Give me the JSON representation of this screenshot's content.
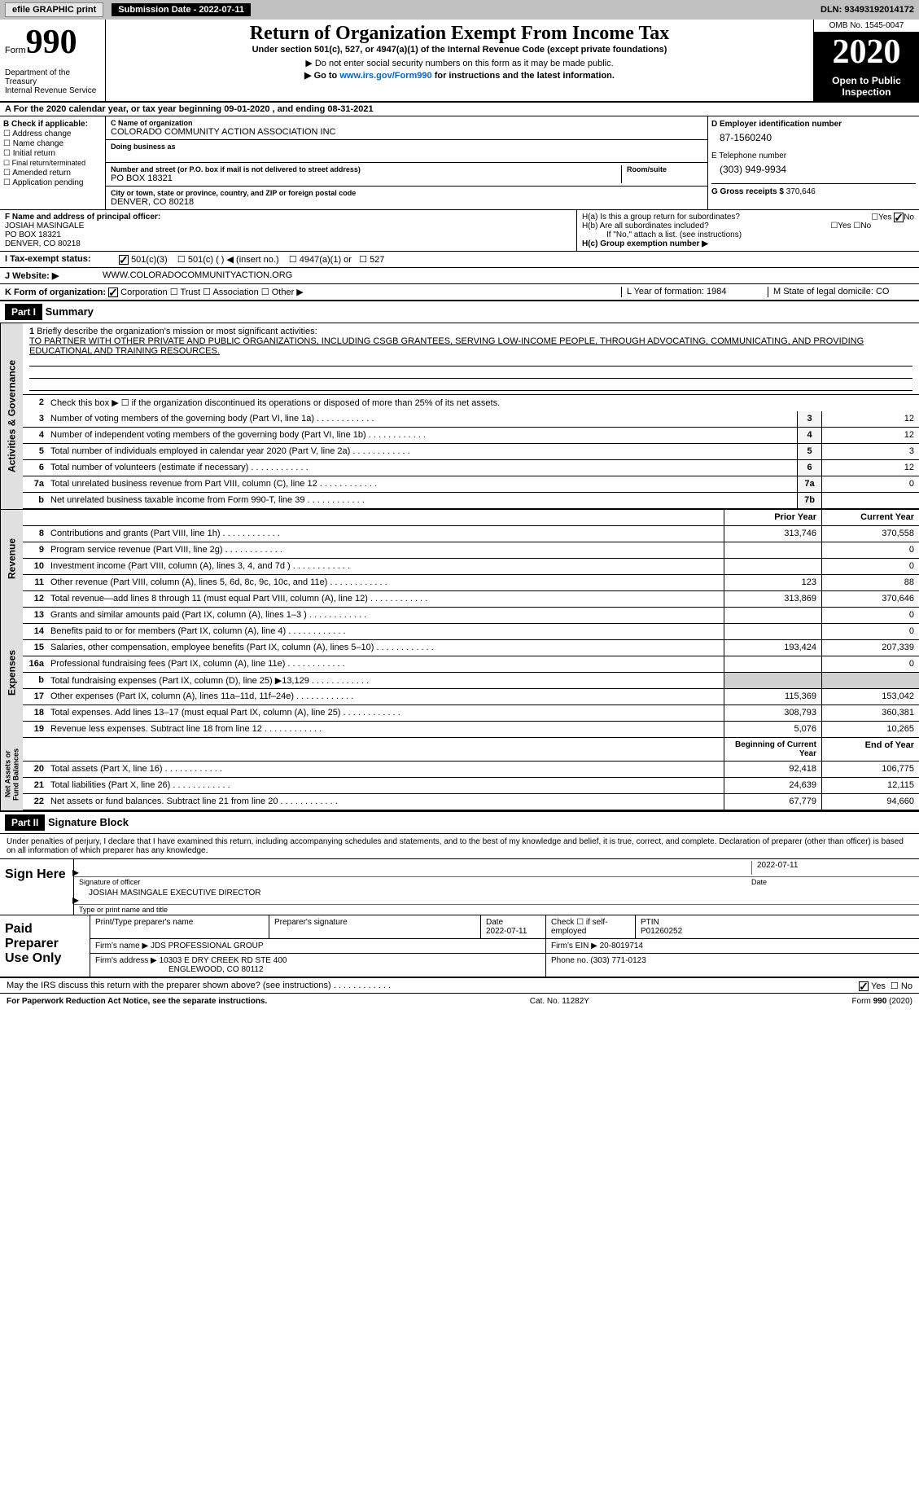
{
  "topbar": {
    "efile": "efile GRAPHIC print",
    "submission_label": "Submission Date - 2022-07-11",
    "dln": "DLN: 93493192014172"
  },
  "header": {
    "form_prefix": "Form",
    "form_num": "990",
    "dept": "Department of the Treasury\nInternal Revenue Service",
    "title": "Return of Organization Exempt From Income Tax",
    "subtitle": "Under section 501(c), 527, or 4947(a)(1) of the Internal Revenue Code (except private foundations)",
    "instruction1": "▶ Do not enter social security numbers on this form as it may be made public.",
    "instruction2": "▶ Go to www.irs.gov/Form990 for instructions and the latest information.",
    "link": "www.irs.gov/Form990",
    "omb": "OMB No. 1545-0047",
    "year": "2020",
    "open": "Open to Public Inspection"
  },
  "rowA": "A For the 2020 calendar year, or tax year beginning 09-01-2020   , and ending 08-31-2021",
  "checkB": {
    "title": "B Check if applicable:",
    "items": [
      "Address change",
      "Name change",
      "Initial return",
      "Final return/terminated",
      "Amended return",
      "Application pending"
    ]
  },
  "blockC": {
    "name_lbl": "C Name of organization",
    "name": "COLORADO COMMUNITY ACTION ASSOCIATION INC",
    "dba_lbl": "Doing business as",
    "dba": "",
    "addr_lbl": "Number and street (or P.O. box if mail is not delivered to street address)",
    "addr": "PO BOX 18321",
    "room_lbl": "Room/suite",
    "city_lbl": "City or town, state or province, country, and ZIP or foreign postal code",
    "city": "DENVER, CO  80218"
  },
  "blockDE": {
    "d_lbl": "D Employer identification number",
    "d_val": "87-1560240",
    "e_lbl": "E Telephone number",
    "e_val": "(303) 949-9934",
    "g_lbl": "G Gross receipts $",
    "g_val": "370,646"
  },
  "blockF": {
    "lbl": "F Name and address of principal officer:",
    "name": "JOSIAH MASINGALE",
    "addr": "PO BOX 18321",
    "city": "DENVER, CO  80218"
  },
  "blockH": {
    "ha": "H(a)  Is this a group return for subordinates?",
    "hb": "H(b)  Are all subordinates included?",
    "hnote": "If \"No,\" attach a list. (see instructions)",
    "hc": "H(c)  Group exemption number ▶"
  },
  "rowI": {
    "lbl": "I    Tax-exempt status:",
    "opts": [
      "501(c)(3)",
      "501(c) (  ) ◀ (insert no.)",
      "4947(a)(1) or",
      "527"
    ]
  },
  "rowJ": {
    "lbl": "J    Website: ▶",
    "val": "WWW.COLORADOCOMMUNITYACTION.ORG"
  },
  "rowK": {
    "lbl": "K Form of organization:",
    "opts": [
      "Corporation",
      "Trust",
      "Association",
      "Other ▶"
    ],
    "l": "L Year of formation: 1984",
    "m": "M State of legal domicile: CO"
  },
  "part1": {
    "head": "Part I",
    "title": "Summary",
    "q1": "Briefly describe the organization's mission or most significant activities:",
    "mission": "TO PARTNER WITH OTHER PRIVATE AND PUBLIC ORGANIZATIONS, INCLUDING CSGB GRANTEES, SERVING LOW-INCOME PEOPLE, THROUGH ADVOCATING, COMMUNICATING, AND PROVIDING EDUCATIONAL AND TRAINING RESOURCES.",
    "q2": "Check this box ▶ ☐ if the organization discontinued its operations or disposed of more than 25% of its net assets.",
    "lines_gov": [
      {
        "n": "3",
        "d": "Number of voting members of the governing body (Part VI, line 1a)",
        "b": "3",
        "v": "12"
      },
      {
        "n": "4",
        "d": "Number of independent voting members of the governing body (Part VI, line 1b)",
        "b": "4",
        "v": "12"
      },
      {
        "n": "5",
        "d": "Total number of individuals employed in calendar year 2020 (Part V, line 2a)",
        "b": "5",
        "v": "3"
      },
      {
        "n": "6",
        "d": "Total number of volunteers (estimate if necessary)",
        "b": "6",
        "v": "12"
      },
      {
        "n": "7a",
        "d": "Total unrelated business revenue from Part VIII, column (C), line 12",
        "b": "7a",
        "v": "0"
      },
      {
        "n": "b",
        "d": "Net unrelated business taxable income from Form 990-T, line 39",
        "b": "7b",
        "v": ""
      }
    ],
    "col_prior": "Prior Year",
    "col_current": "Current Year",
    "rev": [
      {
        "n": "8",
        "d": "Contributions and grants (Part VIII, line 1h)",
        "p": "313,746",
        "c": "370,558"
      },
      {
        "n": "9",
        "d": "Program service revenue (Part VIII, line 2g)",
        "p": "",
        "c": "0"
      },
      {
        "n": "10",
        "d": "Investment income (Part VIII, column (A), lines 3, 4, and 7d )",
        "p": "",
        "c": "0"
      },
      {
        "n": "11",
        "d": "Other revenue (Part VIII, column (A), lines 5, 6d, 8c, 9c, 10c, and 11e)",
        "p": "123",
        "c": "88"
      },
      {
        "n": "12",
        "d": "Total revenue—add lines 8 through 11 (must equal Part VIII, column (A), line 12)",
        "p": "313,869",
        "c": "370,646"
      }
    ],
    "exp": [
      {
        "n": "13",
        "d": "Grants and similar amounts paid (Part IX, column (A), lines 1–3 )",
        "p": "",
        "c": "0"
      },
      {
        "n": "14",
        "d": "Benefits paid to or for members (Part IX, column (A), line 4)",
        "p": "",
        "c": "0"
      },
      {
        "n": "15",
        "d": "Salaries, other compensation, employee benefits (Part IX, column (A), lines 5–10)",
        "p": "193,424",
        "c": "207,339"
      },
      {
        "n": "16a",
        "d": "Professional fundraising fees (Part IX, column (A), line 11e)",
        "p": "",
        "c": "0"
      },
      {
        "n": "b",
        "d": "Total fundraising expenses (Part IX, column (D), line 25) ▶13,129",
        "p": "SHADE",
        "c": "SHADE"
      },
      {
        "n": "17",
        "d": "Other expenses (Part IX, column (A), lines 11a–11d, 11f–24e)",
        "p": "115,369",
        "c": "153,042"
      },
      {
        "n": "18",
        "d": "Total expenses. Add lines 13–17 (must equal Part IX, column (A), line 25)",
        "p": "308,793",
        "c": "360,381"
      },
      {
        "n": "19",
        "d": "Revenue less expenses. Subtract line 18 from line 12",
        "p": "5,076",
        "c": "10,265"
      }
    ],
    "col_begin": "Beginning of Current Year",
    "col_end": "End of Year",
    "net": [
      {
        "n": "20",
        "d": "Total assets (Part X, line 16)",
        "p": "92,418",
        "c": "106,775"
      },
      {
        "n": "21",
        "d": "Total liabilities (Part X, line 26)",
        "p": "24,639",
        "c": "12,115"
      },
      {
        "n": "22",
        "d": "Net assets or fund balances. Subtract line 21 from line 20",
        "p": "67,779",
        "c": "94,660"
      }
    ]
  },
  "vlabels": {
    "gov": "Activities & Governance",
    "rev": "Revenue",
    "exp": "Expenses",
    "net": "Net Assets or\nFund Balances"
  },
  "part2": {
    "head": "Part II",
    "title": "Signature Block",
    "intro": "Under penalties of perjury, I declare that I have examined this return, including accompanying schedules and statements, and to the best of my knowledge and belief, it is true, correct, and complete. Declaration of preparer (other than officer) is based on all information of which preparer has any knowledge.",
    "sign_here": "Sign Here",
    "sig_officer": "Signature of officer",
    "sig_date": "2022-07-11",
    "date_lbl": "Date",
    "officer_name": "JOSIAH MASINGALE EXECUTIVE DIRECTOR",
    "officer_lbl": "Type or print name and title",
    "paid": "Paid Preparer Use Only",
    "prep_name_lbl": "Print/Type preparer's name",
    "prep_sig_lbl": "Preparer's signature",
    "prep_date_lbl": "Date",
    "prep_date": "2022-07-11",
    "prep_check": "Check ☐ if self-employed",
    "ptin_lbl": "PTIN",
    "ptin": "P01260252",
    "firm_name_lbl": "Firm's name   ▶",
    "firm_name": "JDS PROFESSIONAL GROUP",
    "firm_ein_lbl": "Firm's EIN ▶",
    "firm_ein": "20-8019714",
    "firm_addr_lbl": "Firm's address ▶",
    "firm_addr": "10303 E DRY CREEK RD STE 400",
    "firm_city": "ENGLEWOOD, CO  80112",
    "phone_lbl": "Phone no.",
    "phone": "(303) 771-0123",
    "discuss": "May the IRS discuss this return with the preparer shown above? (see instructions)"
  },
  "footer": {
    "reduction": "For Paperwork Reduction Act Notice, see the separate instructions.",
    "cat": "Cat. No. 11282Y",
    "form": "Form 990 (2020)"
  }
}
